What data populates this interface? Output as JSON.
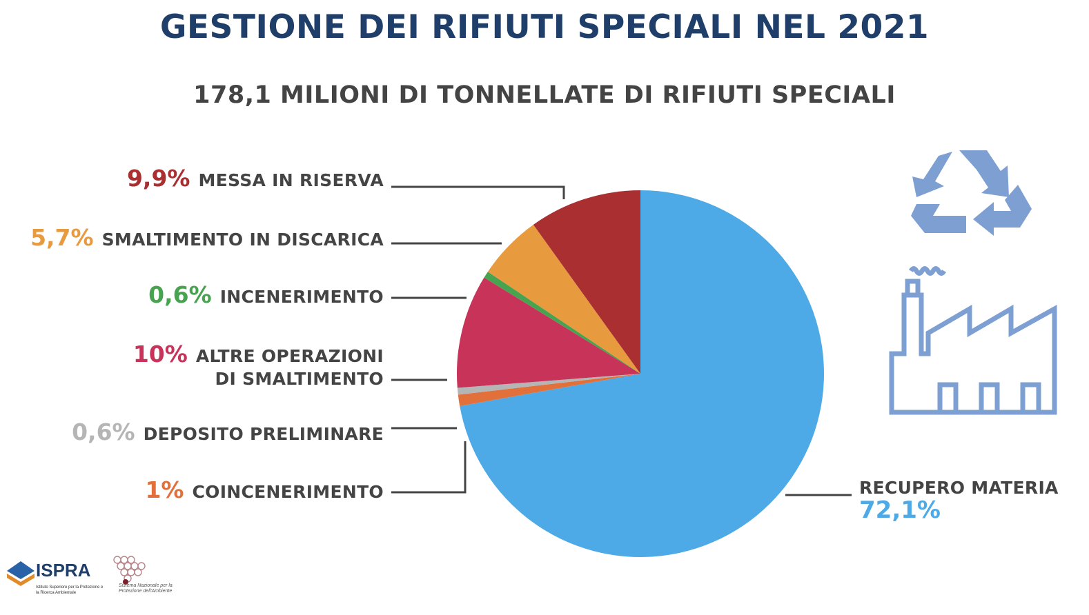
{
  "title": "GESTIONE DEI RIFIUTI SPECIALI NEL 2021",
  "subtitle": "178,1 MILIONI DI TONNELLATE DI RIFIUTI SPECIALI",
  "chart_data": {
    "type": "pie",
    "title": "GESTIONE DEI RIFIUTI SPECIALI NEL 2021",
    "subtitle": "178,1 MILIONI DI TONNELLATE DI RIFIUTI SPECIALI",
    "start": "12 o'clock",
    "direction": "clockwise",
    "slices": [
      {
        "name": "RECUPERO MATERIA",
        "value": 72.1,
        "label": "72,1%",
        "color": "#4eaae6"
      },
      {
        "name": "COINCENERIMENTO",
        "value": 1,
        "label": "1%",
        "color": "#e2703a"
      },
      {
        "name": "DEPOSITO PRELIMINARE",
        "value": 0.6,
        "label": "0,6%",
        "color": "#b5b5b5"
      },
      {
        "name": "ALTRE OPERAZIONI DI SMALTIMENTO",
        "value": 10,
        "label": "10%",
        "color": "#c8335a"
      },
      {
        "name": "INCENERIMENTO",
        "value": 0.6,
        "label": "0,6%",
        "color": "#48a350"
      },
      {
        "name": "SMALTIMENTO IN DISCARICA",
        "value": 5.7,
        "label": "5,7%",
        "color": "#e89a3f"
      },
      {
        "name": "MESSA IN RISERVA",
        "value": 9.9,
        "label": "9,9%",
        "color": "#a92f31"
      }
    ]
  },
  "labels": {
    "messa": {
      "pct": "9,9%",
      "name": "MESSA IN RISERVA"
    },
    "discarica": {
      "pct": "5,7%",
      "name": "SMALTIMENTO IN DISCARICA"
    },
    "incenerimento": {
      "pct": "0,6%",
      "name": "INCENERIMENTO"
    },
    "altre": {
      "pct": "10%",
      "name1": "ALTRE OPERAZIONI",
      "name2": "DI SMALTIMENTO"
    },
    "deposito": {
      "pct": "0,6%",
      "name": "DEPOSITO PRELIMINARE"
    },
    "coincenerimento": {
      "pct": "1%",
      "name": "COINCENERIMENTO"
    },
    "recupero": {
      "pct": "72,1%",
      "name": "RECUPERO MATERIA"
    }
  },
  "logos": {
    "ispra": "ISPRA",
    "ispra_sub": "Istituto Superiore per la Protezione e la Ricerca Ambientale",
    "snpa_sub": "Sistema Nazionale per la Protezione dell'Ambiente"
  },
  "icons": [
    "recycle-icon",
    "factory-icon"
  ]
}
